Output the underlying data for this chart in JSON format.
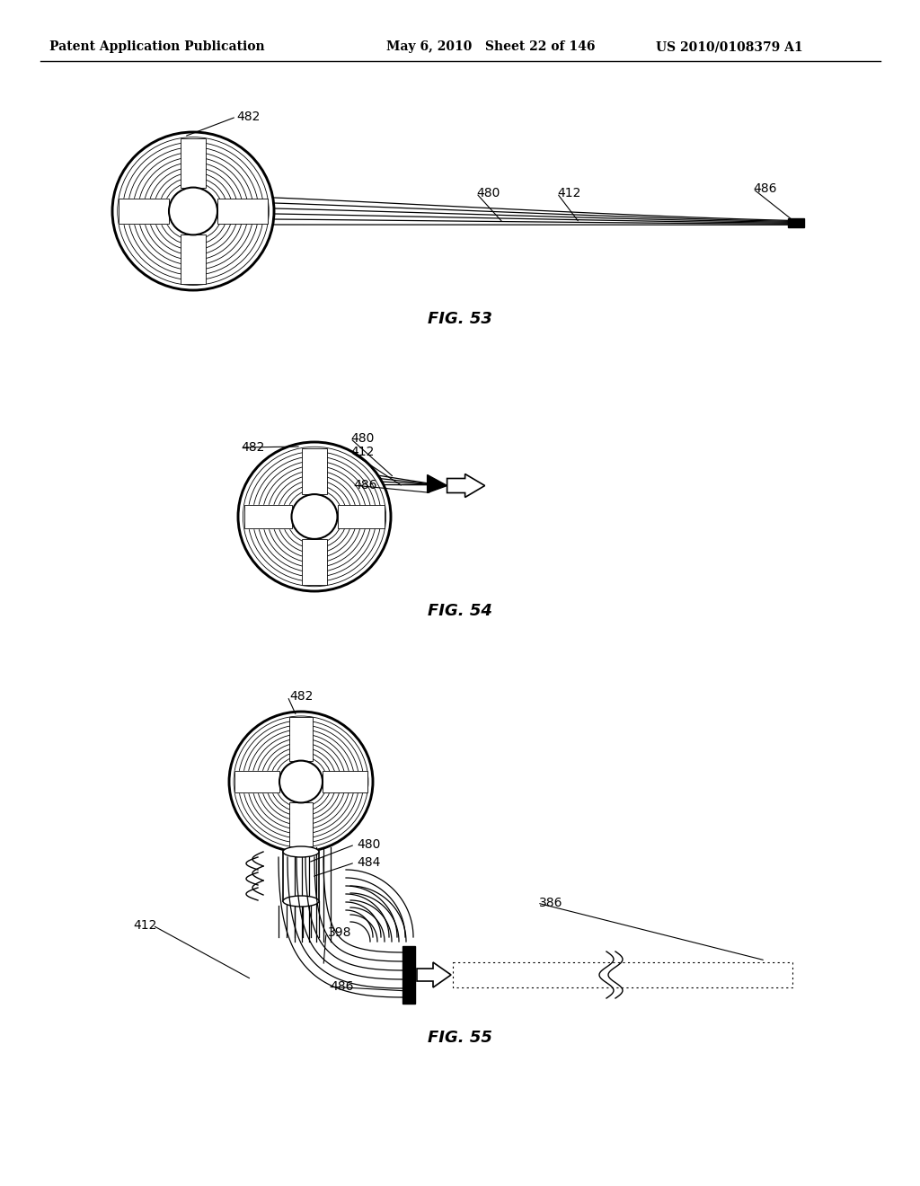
{
  "header_left": "Patent Application Publication",
  "header_mid": "May 6, 2010   Sheet 22 of 146",
  "header_right": "US 2010/0108379 A1",
  "fig53_caption": "FIG. 53",
  "fig54_caption": "FIG. 54",
  "fig55_caption": "FIG. 55",
  "bg_color": "#ffffff",
  "line_color": "#000000"
}
